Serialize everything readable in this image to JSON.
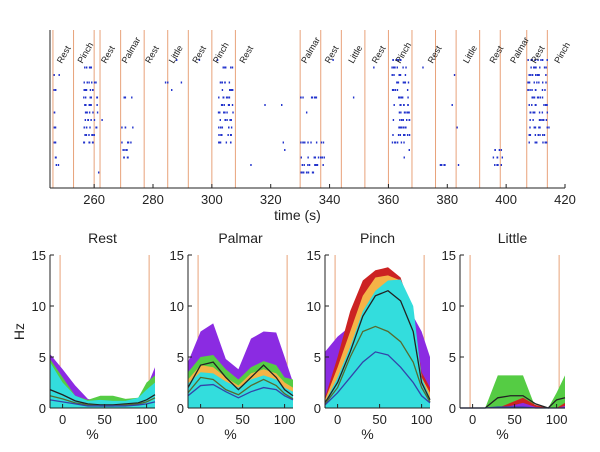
{
  "chart_data": [
    {
      "type": "scatter",
      "subtype": "raster",
      "xlabel": "time (s)",
      "xlim": [
        245,
        420
      ],
      "xticks": [
        260,
        280,
        300,
        320,
        340,
        360,
        380,
        400,
        420
      ],
      "n_units": 16,
      "event_labels": [
        "Rest",
        "Pinch",
        "Rest",
        "Palmar",
        "Rest",
        "Little",
        "Rest",
        "Pinch",
        "Rest",
        "Palmar",
        "Rest",
        "Little",
        "Rest",
        "Pinch",
        "Rest",
        "Little",
        "Rest",
        "Palmar",
        "Rest",
        "Pinch"
      ],
      "event_label_times": [
        249,
        256,
        264,
        271,
        279,
        287,
        295,
        302,
        311,
        332,
        340,
        348,
        356,
        364,
        375,
        387,
        396,
        403,
        410,
        418
      ],
      "marker_times": [
        246,
        253,
        260,
        262,
        269,
        277,
        285,
        292,
        300,
        308,
        330,
        337,
        344,
        352,
        360,
        368,
        376,
        383,
        391,
        398,
        407,
        414
      ],
      "marker_color": "#e8a27a",
      "spike_color": "#2233cc",
      "bursts": [
        {
          "t0": 256,
          "t1": 261,
          "units": [
            2,
            4,
            5,
            6,
            7,
            8,
            9,
            10,
            11,
            12
          ]
        },
        {
          "t0": 302,
          "t1": 307,
          "units": [
            2,
            4,
            5,
            6,
            7,
            8,
            9,
            10,
            11,
            12
          ]
        },
        {
          "t0": 361,
          "t1": 367,
          "units": [
            1,
            2,
            3,
            4,
            5,
            6,
            7,
            8,
            9,
            10,
            11,
            12
          ]
        },
        {
          "t0": 407,
          "t1": 414,
          "units": [
            1,
            2,
            3,
            4,
            5,
            6,
            7,
            8,
            9,
            10,
            11,
            12
          ]
        },
        {
          "t0": 269,
          "t1": 273,
          "units": [
            6,
            10,
            12,
            13,
            14
          ]
        },
        {
          "t0": 330,
          "t1": 338,
          "units": [
            6,
            12,
            14,
            15,
            16
          ]
        },
        {
          "t0": 246,
          "t1": 248,
          "units": [
            3,
            5,
            8,
            10,
            12,
            14,
            15
          ]
        },
        {
          "t0": 283,
          "t1": 285,
          "units": [
            4
          ]
        },
        {
          "t0": 376,
          "t1": 380,
          "units": [
            15
          ]
        },
        {
          "t0": 395,
          "t1": 399,
          "units": [
            13,
            14,
            15
          ]
        }
      ]
    },
    {
      "type": "area",
      "title": "Rest",
      "xlabel": "%",
      "ylabel": "Hz",
      "xlim": [
        -15,
        110
      ],
      "ylim": [
        0,
        15
      ],
      "xticks": [
        0,
        50,
        100
      ],
      "yticks": [
        0,
        5,
        10,
        15
      ],
      "vlines": [
        -3,
        103
      ],
      "x": [
        -15,
        0,
        15,
        30,
        45,
        60,
        75,
        90,
        100,
        110
      ],
      "series": [
        {
          "color": "#8b2be2",
          "values": [
            5.3,
            3.8,
            2.2,
            0.9,
            0.6,
            0.5,
            0.6,
            0.9,
            2.0,
            4.0
          ]
        },
        {
          "color": "#55cc44",
          "values": [
            4.8,
            3.0,
            1.2,
            0.8,
            1.2,
            1.2,
            0.9,
            1.0,
            2.5,
            3.2
          ]
        },
        {
          "color": "#33dddd",
          "values": [
            4.5,
            2.5,
            1.2,
            0.7,
            0.8,
            0.7,
            0.7,
            1.0,
            1.8,
            2.5
          ]
        }
      ],
      "lines": [
        {
          "color": "#222222",
          "values": [
            1.8,
            1.3,
            0.7,
            0.4,
            0.3,
            0.3,
            0.4,
            0.5,
            0.8,
            1.3
          ]
        },
        {
          "color": "#556b2f",
          "values": [
            1.2,
            0.9,
            0.5,
            0.3,
            0.2,
            0.2,
            0.3,
            0.4,
            0.6,
            1.0
          ]
        },
        {
          "color": "#3344aa",
          "values": [
            0.8,
            0.6,
            0.4,
            0.2,
            0.2,
            0.2,
            0.2,
            0.3,
            0.4,
            0.6
          ]
        }
      ]
    },
    {
      "type": "area",
      "title": "Palmar",
      "xlabel": "%",
      "xlim": [
        -15,
        110
      ],
      "ylim": [
        0,
        15
      ],
      "xticks": [
        0,
        50,
        100
      ],
      "yticks": [
        0,
        5,
        10,
        15
      ],
      "vlines": [
        -3,
        103
      ],
      "x": [
        -15,
        0,
        15,
        30,
        45,
        60,
        75,
        90,
        100,
        110
      ],
      "series": [
        {
          "color": "#8b2be2",
          "values": [
            4.5,
            7.5,
            8.3,
            4.8,
            3.8,
            6.8,
            7.5,
            7.4,
            5.0,
            2.5
          ]
        },
        {
          "color": "#55cc44",
          "values": [
            3.5,
            5.0,
            5.2,
            3.8,
            2.8,
            4.0,
            4.6,
            4.2,
            3.0,
            2.8
          ]
        },
        {
          "color": "#f5b347",
          "values": [
            2.8,
            4.2,
            4.0,
            3.0,
            2.2,
            3.4,
            3.8,
            3.4,
            2.5,
            2.0
          ]
        },
        {
          "color": "#33dddd",
          "values": [
            2.4,
            3.5,
            3.4,
            2.6,
            2.0,
            2.8,
            3.2,
            2.8,
            2.0,
            1.6
          ]
        }
      ],
      "lines": [
        {
          "color": "#222222",
          "values": [
            2.0,
            4.2,
            4.5,
            3.0,
            1.8,
            3.0,
            4.2,
            3.0,
            1.8,
            1.2
          ]
        },
        {
          "color": "#556b2f",
          "values": [
            1.5,
            3.0,
            2.8,
            1.8,
            1.3,
            2.2,
            2.8,
            2.2,
            1.4,
            0.9
          ]
        },
        {
          "color": "#3344aa",
          "values": [
            1.2,
            2.2,
            2.3,
            1.6,
            1.0,
            1.6,
            2.0,
            1.8,
            1.2,
            0.8
          ]
        }
      ]
    },
    {
      "type": "area",
      "title": "Pinch",
      "xlabel": "%",
      "xlim": [
        -15,
        110
      ],
      "ylim": [
        0,
        15
      ],
      "xticks": [
        0,
        50,
        100
      ],
      "yticks": [
        0,
        5,
        10,
        15
      ],
      "vlines": [
        -3,
        103
      ],
      "x": [
        -15,
        0,
        15,
        30,
        45,
        60,
        75,
        90,
        100,
        110
      ],
      "series": [
        {
          "color": "#8b2be2",
          "values": [
            5.5,
            7.0,
            8.0,
            8.5,
            9.0,
            9.5,
            9.5,
            9.0,
            7.5,
            5.0
          ]
        },
        {
          "color": "#cc2222",
          "values": [
            1.0,
            5.0,
            9.5,
            12.5,
            13.5,
            13.8,
            12.8,
            9.0,
            3.5,
            2.0
          ]
        },
        {
          "color": "#f5b347",
          "values": [
            0.8,
            4.0,
            7.5,
            11.0,
            12.8,
            13.0,
            12.5,
            8.5,
            3.0,
            1.5
          ]
        },
        {
          "color": "#33dddd",
          "values": [
            0.6,
            3.0,
            6.0,
            9.5,
            11.5,
            12.5,
            12.6,
            10.0,
            3.0,
            1.0
          ]
        }
      ],
      "lines": [
        {
          "color": "#222222",
          "values": [
            0.5,
            2.5,
            5.5,
            9.0,
            11.0,
            11.5,
            10.5,
            7.5,
            2.5,
            0.8
          ]
        },
        {
          "color": "#556b2f",
          "values": [
            0.4,
            2.0,
            5.0,
            7.5,
            8.0,
            7.5,
            6.5,
            4.5,
            2.0,
            0.6
          ]
        },
        {
          "color": "#3344aa",
          "values": [
            0.3,
            1.5,
            3.0,
            4.5,
            5.5,
            5.2,
            4.0,
            2.5,
            1.2,
            0.5
          ]
        }
      ]
    },
    {
      "type": "area",
      "title": "Little",
      "xlabel": "%",
      "xlim": [
        -15,
        110
      ],
      "ylim": [
        0,
        15
      ],
      "xticks": [
        0,
        50,
        100
      ],
      "yticks": [
        0,
        5,
        10,
        15
      ],
      "vlines": [
        -3,
        103
      ],
      "x": [
        -15,
        0,
        15,
        30,
        45,
        60,
        75,
        90,
        100,
        110
      ],
      "series": [
        {
          "color": "#55cc44",
          "values": [
            0,
            0,
            0,
            3.2,
            3.2,
            3.2,
            0,
            0,
            1.5,
            3.2
          ]
        },
        {
          "color": "#cc2222",
          "values": [
            0,
            0,
            0,
            0,
            0.5,
            1.0,
            0.3,
            0,
            0,
            0.5
          ]
        },
        {
          "color": "#8b2be2",
          "values": [
            0,
            0,
            0,
            0,
            0.2,
            0.5,
            0.1,
            0,
            0,
            0.2
          ]
        }
      ],
      "lines": [
        {
          "color": "#222222",
          "values": [
            0,
            0,
            0,
            1.0,
            1.2,
            1.2,
            0.4,
            0,
            0.8,
            1.0
          ]
        },
        {
          "color": "#3344aa",
          "values": [
            0,
            0,
            0,
            0.1,
            0.1,
            0.1,
            0,
            0,
            0,
            0
          ]
        }
      ]
    }
  ]
}
